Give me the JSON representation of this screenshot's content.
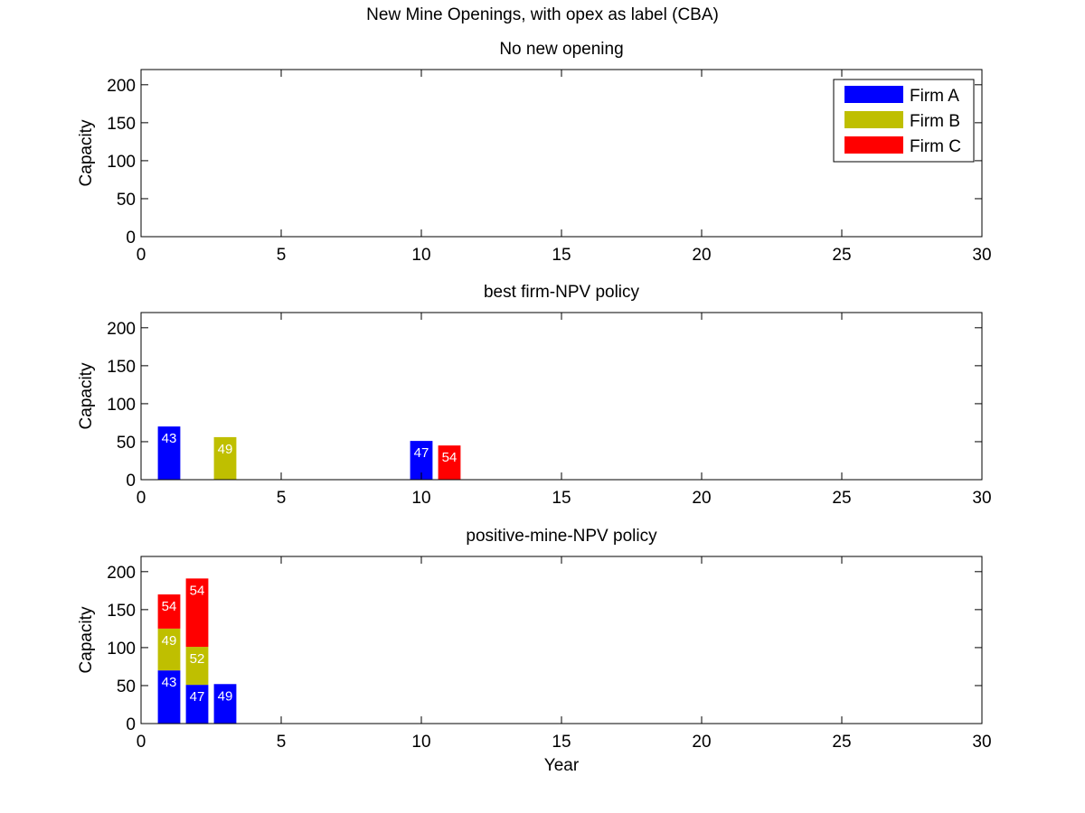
{
  "figure": {
    "title": "New Mine Openings, with opex as label (CBA)"
  },
  "colors": {
    "Firm A": "#0000ff",
    "Firm B": "#bfbf00",
    "Firm C": "#ff0000"
  },
  "chart_data": [
    {
      "type": "bar",
      "stacked": true,
      "title": "No new opening",
      "xlabel": "",
      "ylabel": "Capacity",
      "xlim": [
        0,
        30
      ],
      "ylim": [
        0,
        220
      ],
      "xticks": [
        0,
        5,
        10,
        15,
        20,
        25,
        30
      ],
      "yticks": [
        0,
        50,
        100,
        150,
        200
      ],
      "legend": {
        "placement": "top-right",
        "entries": [
          "Firm A",
          "Firm B",
          "Firm C"
        ]
      },
      "bars": []
    },
    {
      "type": "bar",
      "stacked": true,
      "title": "best firm-NPV policy",
      "xlabel": "",
      "ylabel": "Capacity",
      "xlim": [
        0,
        30
      ],
      "ylim": [
        0,
        220
      ],
      "xticks": [
        0,
        5,
        10,
        15,
        20,
        25,
        30
      ],
      "yticks": [
        0,
        50,
        100,
        150,
        200
      ],
      "bars": [
        {
          "x": 1,
          "firm": "Firm A",
          "value": 70,
          "label": "43"
        },
        {
          "x": 3,
          "firm": "Firm B",
          "value": 56,
          "label": "49"
        },
        {
          "x": 10,
          "firm": "Firm A",
          "value": 51,
          "label": "47"
        },
        {
          "x": 11,
          "firm": "Firm C",
          "value": 45,
          "label": "54"
        }
      ]
    },
    {
      "type": "bar",
      "stacked": true,
      "title": "positive-mine-NPV policy",
      "xlabel": "Year",
      "ylabel": "Capacity",
      "xlim": [
        0,
        30
      ],
      "ylim": [
        0,
        220
      ],
      "xticks": [
        0,
        5,
        10,
        15,
        20,
        25,
        30
      ],
      "yticks": [
        0,
        50,
        100,
        150,
        200
      ],
      "bars": [
        {
          "x": 1,
          "firm": "Firm A",
          "value": 70,
          "label": "43"
        },
        {
          "x": 1,
          "firm": "Firm B",
          "value": 55,
          "label": "49"
        },
        {
          "x": 1,
          "firm": "Firm C",
          "value": 45,
          "label": "54"
        },
        {
          "x": 2,
          "firm": "Firm A",
          "value": 51,
          "label": "47"
        },
        {
          "x": 2,
          "firm": "Firm B",
          "value": 50,
          "label": "52"
        },
        {
          "x": 2,
          "firm": "Firm C",
          "value": 90,
          "label": "54"
        },
        {
          "x": 3,
          "firm": "Firm A",
          "value": 52,
          "label": "49"
        }
      ]
    }
  ]
}
